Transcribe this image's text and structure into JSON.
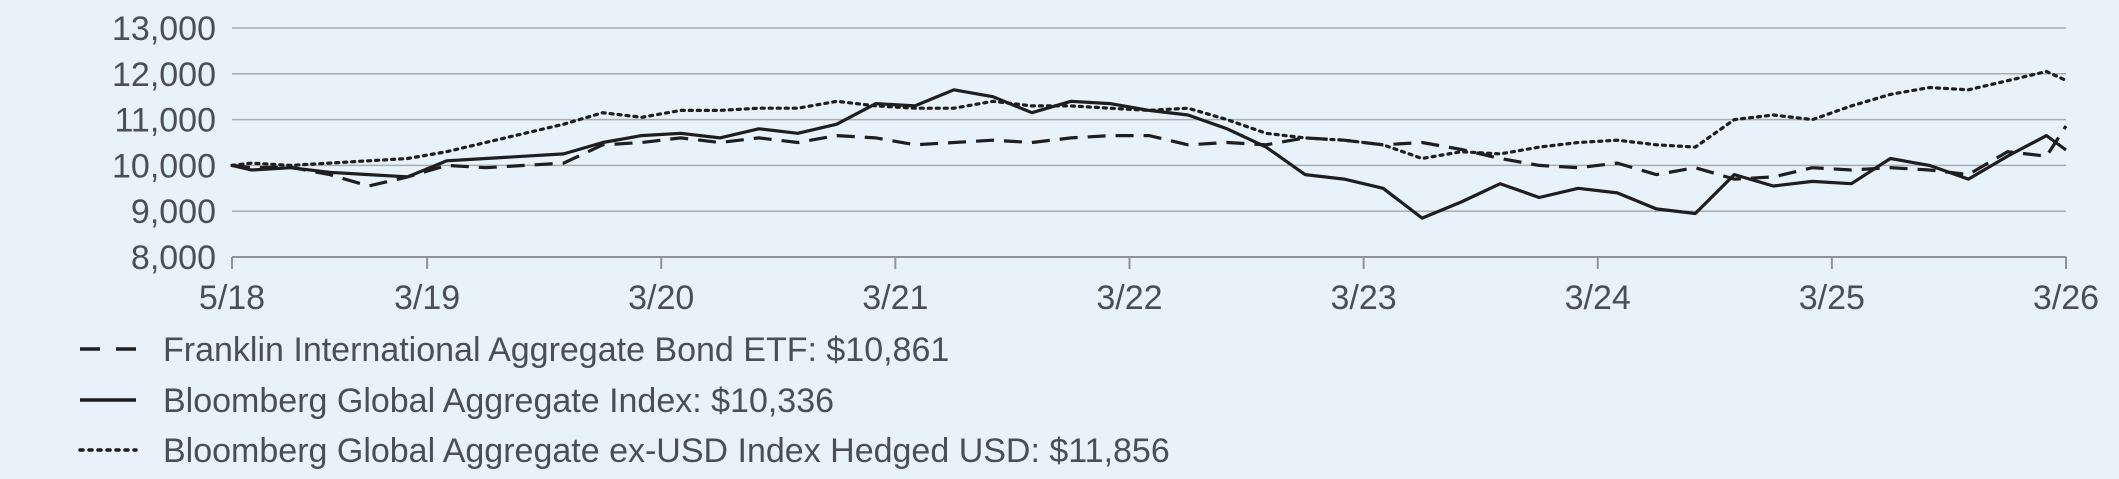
{
  "chart_data": {
    "type": "line",
    "title": "",
    "xlabel": "",
    "ylabel": "",
    "ylim": [
      8000,
      13000
    ],
    "y_ticks": [
      {
        "value": 8000,
        "label": "8,000"
      },
      {
        "value": 9000,
        "label": "9,000"
      },
      {
        "value": 10000,
        "label": "10,000"
      },
      {
        "value": 11000,
        "label": "11,000"
      },
      {
        "value": 12000,
        "label": "12,000"
      },
      {
        "value": 13000,
        "label": "13,000"
      }
    ],
    "x_range": [
      "2018-05",
      "2026-03"
    ],
    "x_ticks": [
      {
        "value": "2018-05",
        "label": "5/18"
      },
      {
        "value": "2019-03",
        "label": "3/19"
      },
      {
        "value": "2020-03",
        "label": "3/20"
      },
      {
        "value": "2021-03",
        "label": "3/21"
      },
      {
        "value": "2022-03",
        "label": "3/22"
      },
      {
        "value": "2023-03",
        "label": "3/23"
      },
      {
        "value": "2024-03",
        "label": "3/24"
      },
      {
        "value": "2025-03",
        "label": "3/25"
      },
      {
        "value": "2026-03",
        "label": "3/26"
      }
    ],
    "grid": "horizontal",
    "legend_placement": "bottom-left",
    "series": [
      {
        "name": "Franklin International Aggregate Bond ETF: $10,861",
        "style": "dashed",
        "color": "#1e1e1e",
        "points": [
          [
            "2018-05",
            10000
          ],
          [
            "2018-06",
            9950
          ],
          [
            "2018-08",
            9960
          ],
          [
            "2018-10",
            9800
          ],
          [
            "2018-12",
            9550
          ],
          [
            "2019-02",
            9750
          ],
          [
            "2019-04",
            10000
          ],
          [
            "2019-06",
            9950
          ],
          [
            "2019-08",
            10000
          ],
          [
            "2019-10",
            10050
          ],
          [
            "2019-12",
            10450
          ],
          [
            "2020-02",
            10500
          ],
          [
            "2020-04",
            10600
          ],
          [
            "2020-06",
            10500
          ],
          [
            "2020-08",
            10600
          ],
          [
            "2020-10",
            10500
          ],
          [
            "2020-12",
            10650
          ],
          [
            "2021-02",
            10600
          ],
          [
            "2021-04",
            10450
          ],
          [
            "2021-06",
            10500
          ],
          [
            "2021-08",
            10550
          ],
          [
            "2021-10",
            10500
          ],
          [
            "2021-12",
            10600
          ],
          [
            "2022-02",
            10650
          ],
          [
            "2022-04",
            10650
          ],
          [
            "2022-06",
            10450
          ],
          [
            "2022-08",
            10500
          ],
          [
            "2022-10",
            10450
          ],
          [
            "2022-12",
            10600
          ],
          [
            "2023-02",
            10550
          ],
          [
            "2023-04",
            10450
          ],
          [
            "2023-06",
            10500
          ],
          [
            "2023-08",
            10350
          ],
          [
            "2023-10",
            10150
          ],
          [
            "2023-12",
            10000
          ],
          [
            "2024-02",
            9950
          ],
          [
            "2024-04",
            10050
          ],
          [
            "2024-06",
            9800
          ],
          [
            "2024-08",
            9950
          ],
          [
            "2024-10",
            9700
          ],
          [
            "2024-12",
            9750
          ],
          [
            "2025-02",
            9950
          ],
          [
            "2025-04",
            9900
          ],
          [
            "2025-06",
            9950
          ],
          [
            "2025-08",
            9900
          ],
          [
            "2025-10",
            9800
          ],
          [
            "2025-12",
            10300
          ],
          [
            "2026-02",
            10200
          ],
          [
            "2026-03",
            10861
          ]
        ]
      },
      {
        "name": "Bloomberg Global Aggregate Index: $10,336",
        "style": "solid",
        "color": "#1e1e1e",
        "points": [
          [
            "2018-05",
            10000
          ],
          [
            "2018-06",
            9900
          ],
          [
            "2018-08",
            9950
          ],
          [
            "2018-10",
            9850
          ],
          [
            "2018-12",
            9800
          ],
          [
            "2019-02",
            9750
          ],
          [
            "2019-04",
            10100
          ],
          [
            "2019-06",
            10150
          ],
          [
            "2019-08",
            10200
          ],
          [
            "2019-10",
            10250
          ],
          [
            "2019-12",
            10500
          ],
          [
            "2020-02",
            10650
          ],
          [
            "2020-04",
            10700
          ],
          [
            "2020-06",
            10600
          ],
          [
            "2020-08",
            10800
          ],
          [
            "2020-10",
            10700
          ],
          [
            "2020-12",
            10900
          ],
          [
            "2021-02",
            11350
          ],
          [
            "2021-04",
            11300
          ],
          [
            "2021-06",
            11650
          ],
          [
            "2021-08",
            11500
          ],
          [
            "2021-10",
            11150
          ],
          [
            "2021-12",
            11400
          ],
          [
            "2022-02",
            11350
          ],
          [
            "2022-04",
            11200
          ],
          [
            "2022-06",
            11100
          ],
          [
            "2022-08",
            10800
          ],
          [
            "2022-10",
            10400
          ],
          [
            "2022-12",
            9800
          ],
          [
            "2023-02",
            9700
          ],
          [
            "2023-04",
            9500
          ],
          [
            "2023-06",
            8850
          ],
          [
            "2023-08",
            9200
          ],
          [
            "2023-10",
            9600
          ],
          [
            "2023-12",
            9300
          ],
          [
            "2024-02",
            9500
          ],
          [
            "2024-04",
            9400
          ],
          [
            "2024-06",
            9050
          ],
          [
            "2024-08",
            8950
          ],
          [
            "2024-10",
            9800
          ],
          [
            "2024-12",
            9550
          ],
          [
            "2025-02",
            9650
          ],
          [
            "2025-04",
            9600
          ],
          [
            "2025-06",
            10150
          ],
          [
            "2025-08",
            10000
          ],
          [
            "2025-10",
            9700
          ],
          [
            "2025-12",
            10200
          ],
          [
            "2026-02",
            10650
          ],
          [
            "2026-03",
            10336
          ]
        ]
      },
      {
        "name": "Bloomberg Global Aggregate ex-USD Index Hedged USD: $11,856",
        "style": "dotted",
        "color": "#1e1e1e",
        "points": [
          [
            "2018-05",
            10000
          ],
          [
            "2018-06",
            10050
          ],
          [
            "2018-08",
            10000
          ],
          [
            "2018-10",
            10050
          ],
          [
            "2018-12",
            10100
          ],
          [
            "2019-02",
            10150
          ],
          [
            "2019-04",
            10300
          ],
          [
            "2019-06",
            10500
          ],
          [
            "2019-08",
            10700
          ],
          [
            "2019-10",
            10900
          ],
          [
            "2019-12",
            11150
          ],
          [
            "2020-02",
            11050
          ],
          [
            "2020-04",
            11200
          ],
          [
            "2020-06",
            11200
          ],
          [
            "2020-08",
            11250
          ],
          [
            "2020-10",
            11250
          ],
          [
            "2020-12",
            11400
          ],
          [
            "2021-02",
            11300
          ],
          [
            "2021-04",
            11250
          ],
          [
            "2021-06",
            11250
          ],
          [
            "2021-08",
            11400
          ],
          [
            "2021-10",
            11300
          ],
          [
            "2021-12",
            11300
          ],
          [
            "2022-02",
            11250
          ],
          [
            "2022-04",
            11200
          ],
          [
            "2022-06",
            11250
          ],
          [
            "2022-08",
            11000
          ],
          [
            "2022-10",
            10700
          ],
          [
            "2022-12",
            10600
          ],
          [
            "2023-02",
            10550
          ],
          [
            "2023-04",
            10450
          ],
          [
            "2023-06",
            10150
          ],
          [
            "2023-08",
            10300
          ],
          [
            "2023-10",
            10250
          ],
          [
            "2023-12",
            10400
          ],
          [
            "2024-02",
            10500
          ],
          [
            "2024-04",
            10550
          ],
          [
            "2024-06",
            10450
          ],
          [
            "2024-08",
            10400
          ],
          [
            "2024-10",
            11000
          ],
          [
            "2024-12",
            11100
          ],
          [
            "2025-02",
            11000
          ],
          [
            "2025-04",
            11300
          ],
          [
            "2025-06",
            11550
          ],
          [
            "2025-08",
            11700
          ],
          [
            "2025-10",
            11650
          ],
          [
            "2025-12",
            11850
          ],
          [
            "2026-02",
            12050
          ],
          [
            "2026-03",
            11856
          ]
        ]
      }
    ]
  }
}
